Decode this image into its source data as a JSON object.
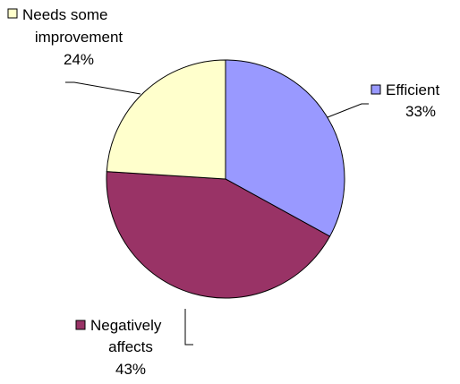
{
  "chart_data": {
    "type": "pie",
    "title": "",
    "slices": [
      {
        "name": "Efficient",
        "value": 33,
        "label": "33%",
        "color": "#9999FF"
      },
      {
        "name": "Negatively affects",
        "value": 43,
        "label": "43%",
        "color": "#993366"
      },
      {
        "name": "Needs some improvement",
        "value": 24,
        "label": "24%",
        "color": "#FFFFCC"
      }
    ],
    "start_angle": "12 o'clock",
    "direction": "clockwise",
    "border_color": "#000000",
    "label_style": "legend key, category name and percentage beside each slice with leader lines"
  },
  "labels": {
    "efficient": {
      "name": "Efficient",
      "percent": "33%"
    },
    "negatively": {
      "name_line1": "Negatively",
      "name_line2": "affects",
      "percent": "43%"
    },
    "needs": {
      "name_line1": "Needs some",
      "name_line2": "improvement",
      "percent": "24%"
    }
  }
}
